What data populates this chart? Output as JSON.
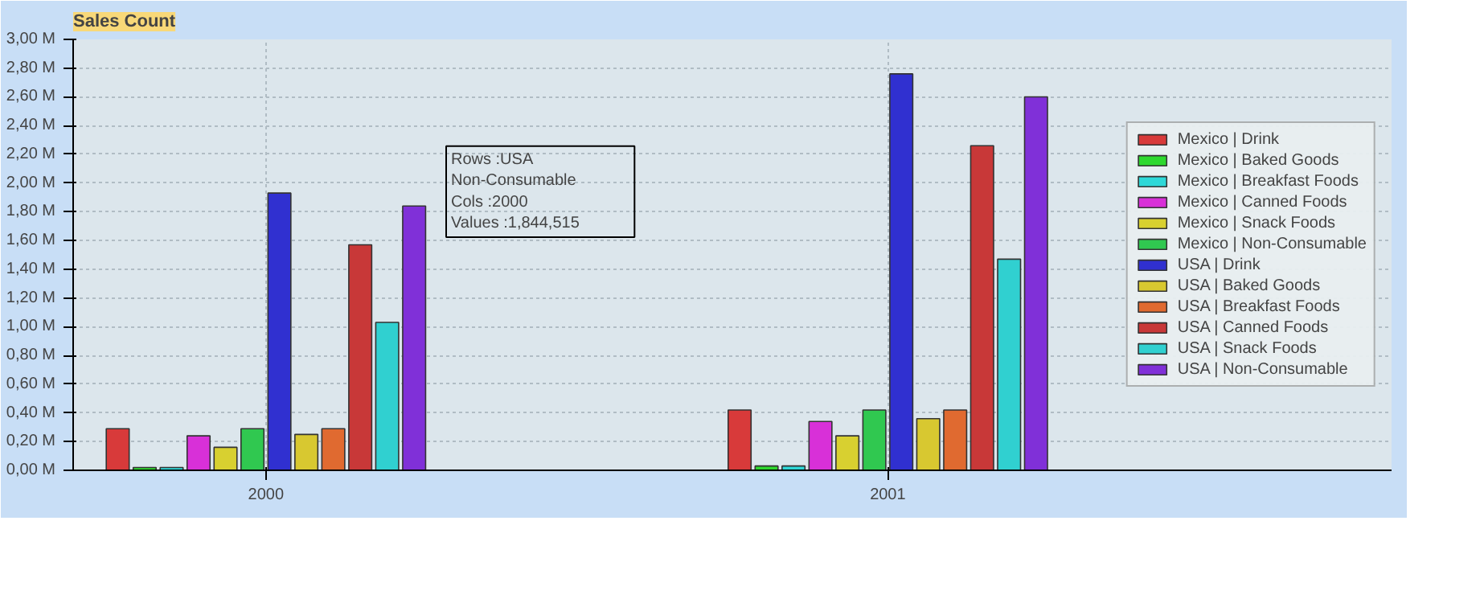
{
  "chart_data": {
    "type": "bar",
    "title": "Sales Count",
    "categories": [
      "2000",
      "2001"
    ],
    "series": [
      {
        "name": "Mexico | Drink",
        "color": "#d83a3a",
        "values": [
          0.29,
          0.42
        ]
      },
      {
        "name": "Mexico | Baked Goods",
        "color": "#2ed82e",
        "values": [
          0.02,
          0.03
        ]
      },
      {
        "name": "Mexico | Breakfast Foods",
        "color": "#2ed8d8",
        "values": [
          0.02,
          0.03
        ]
      },
      {
        "name": "Mexico | Canned Foods",
        "color": "#d830d8",
        "values": [
          0.24,
          0.34
        ]
      },
      {
        "name": "Mexico | Snack Foods",
        "color": "#d8d030",
        "values": [
          0.16,
          0.24
        ]
      },
      {
        "name": "Mexico | Non-Consumable",
        "color": "#30c850",
        "values": [
          0.29,
          0.42
        ]
      },
      {
        "name": "USA | Drink",
        "color": "#3030d0",
        "values": [
          1.93,
          2.76
        ]
      },
      {
        "name": "USA | Baked Goods",
        "color": "#d8c830",
        "values": [
          0.25,
          0.36
        ]
      },
      {
        "name": "USA | Breakfast Foods",
        "color": "#e06a30",
        "values": [
          0.29,
          0.42
        ]
      },
      {
        "name": "USA | Canned Foods",
        "color": "#c83838",
        "values": [
          1.57,
          2.26
        ]
      },
      {
        "name": "USA | Snack Foods",
        "color": "#30d0d0",
        "values": [
          1.03,
          1.47
        ]
      },
      {
        "name": "USA | Non-Consumable",
        "color": "#8030d8",
        "values": [
          1.84,
          2.6
        ]
      }
    ],
    "ylim": [
      0,
      3.0
    ],
    "yticks": [
      {
        "value": 0,
        "label": "0,00 M"
      },
      {
        "value": 0.2,
        "label": "0,20 M"
      },
      {
        "value": 0.4,
        "label": "0,40 M"
      },
      {
        "value": 0.6,
        "label": "0,60 M"
      },
      {
        "value": 0.8,
        "label": "0,80 M"
      },
      {
        "value": 1.0,
        "label": "1,00 M"
      },
      {
        "value": 1.2,
        "label": "1,20 M"
      },
      {
        "value": 1.4,
        "label": "1,40 M"
      },
      {
        "value": 1.6,
        "label": "1,60 M"
      },
      {
        "value": 1.8,
        "label": "1,80 M"
      },
      {
        "value": 2.0,
        "label": "2,00 M"
      },
      {
        "value": 2.2,
        "label": "2,20 M"
      },
      {
        "value": 2.4,
        "label": "2,40 M"
      },
      {
        "value": 2.6,
        "label": "2,60 M"
      },
      {
        "value": 2.8,
        "label": "2,80 M"
      },
      {
        "value": 3.0,
        "label": "3,00 M"
      }
    ],
    "annotations": [
      "Rows    :USA\n            Non-Consumable\nCols     :2000\nValues  :1,844,515"
    ],
    "grid": true,
    "legend": "right"
  }
}
